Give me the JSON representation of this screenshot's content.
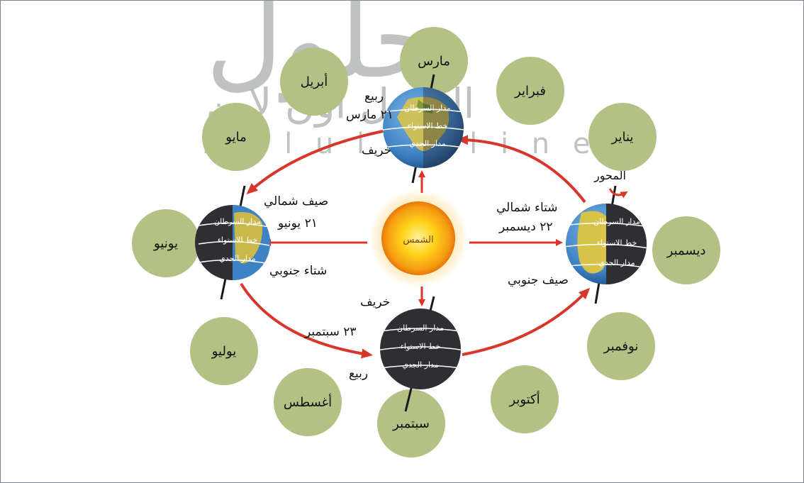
{
  "watermark": {
    "arabic": "الحلول اون لاين",
    "latin": "h u l u l  o n l i n e"
  },
  "sun": {
    "label": "الشمس"
  },
  "months": {
    "march": "مارس",
    "april": "أبريل",
    "february": "فبراير",
    "may": "مايو",
    "january": "يناير",
    "june": "يونيو",
    "december": "ديسمبر",
    "july": "يوليو",
    "november": "نوفمبر",
    "august": "أغسطس",
    "october": "أكتوبر",
    "september": "سبتمبر"
  },
  "earth_lines": {
    "cancer": "مدار السرطان",
    "equator": "خط الاستواء",
    "capricorn": "مدار الجدي"
  },
  "labels": {
    "spring_top": "ربيع",
    "date_march": "٢١ مارس",
    "autumn_top": "خريف",
    "north_summer": "صيف شمالي",
    "date_june": "٢١ يونيو",
    "south_winter": "شتاء جنوبي",
    "north_winter": "شتاء شمالي",
    "date_december": "٢٢ ديسمبر",
    "south_summer": "صيف جنوبي",
    "axis": "المحور",
    "autumn_bottom": "خريف",
    "date_september": "٢٣ سبتمبر",
    "spring_bottom": "ربيع"
  },
  "colors": {
    "month_circle": "#b4c184",
    "orbit_arrow": "#d8362a",
    "earth_day": "#3d82c4",
    "earth_land": "#d7c34a",
    "earth_night": "#2f2f33",
    "sun_core": "#ffd21a",
    "sun_edge": "#f08a10"
  }
}
